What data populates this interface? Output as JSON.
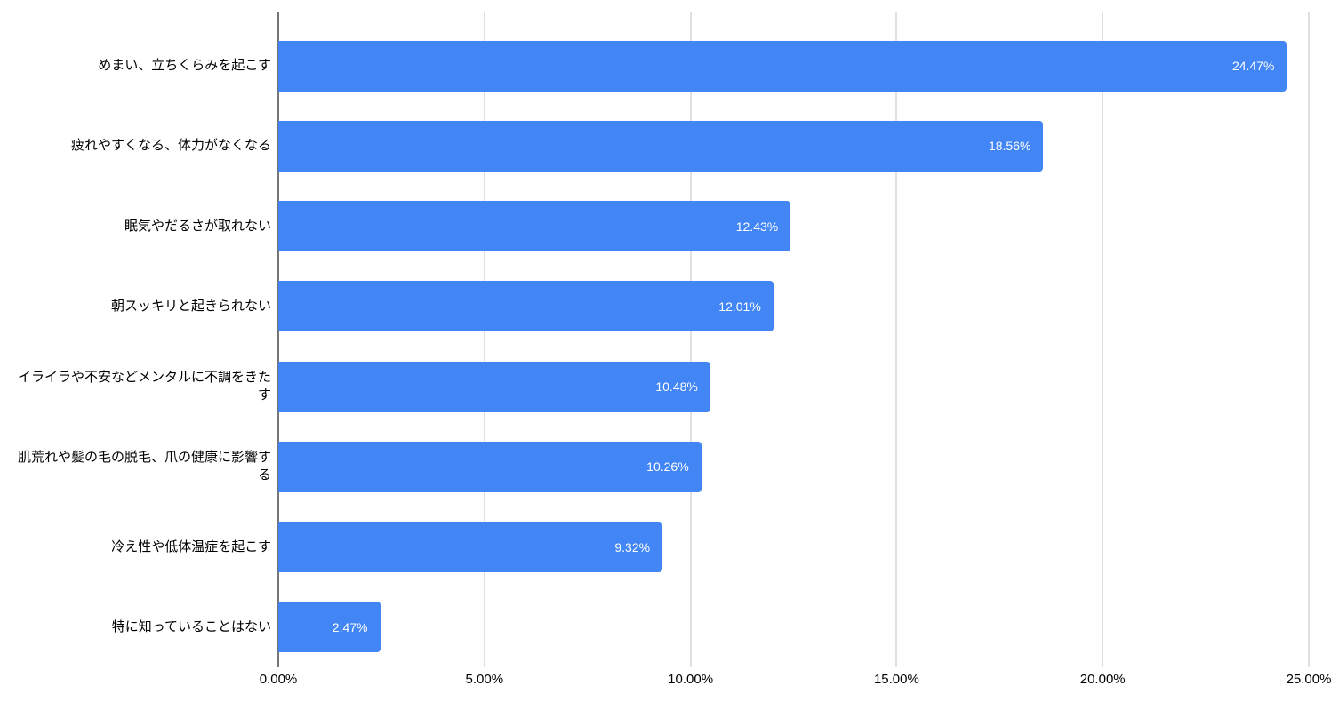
{
  "chart_data": {
    "type": "bar",
    "orientation": "horizontal",
    "title": "",
    "xlabel": "",
    "ylabel": "",
    "xlim": [
      0,
      25
    ],
    "grid": "vertical",
    "legend": "none",
    "categories": [
      "めまい、立ちくらみを起こす",
      "疲れやすくなる、体力がなくなる",
      "眠気やだるさが取れない",
      "朝スッキリと起きられない",
      "イライラや不安などメンタルに不調をきたす",
      "肌荒れや髪の毛の脱毛、爪の健康に影響する",
      "冷え性や低体温症を起こす",
      "特に知っていることはない"
    ],
    "values": [
      24.47,
      18.56,
      12.43,
      12.01,
      10.48,
      10.26,
      9.32,
      2.47
    ],
    "value_labels": [
      "24.47%",
      "18.56%",
      "12.43%",
      "12.01%",
      "10.48%",
      "10.26%",
      "9.32%",
      "2.47%"
    ],
    "x_ticks": [
      0,
      5,
      10,
      15,
      20,
      25
    ],
    "x_tick_labels": [
      "0.00%",
      "5.00%",
      "10.00%",
      "15.00%",
      "20.00%",
      "25.00%"
    ],
    "colors": {
      "bar": "#4285f4",
      "value_label": "#ffffff",
      "gridline": "#e0e0e0",
      "axis_line": "#757575",
      "text": "#000000",
      "background": "#ffffff"
    }
  }
}
